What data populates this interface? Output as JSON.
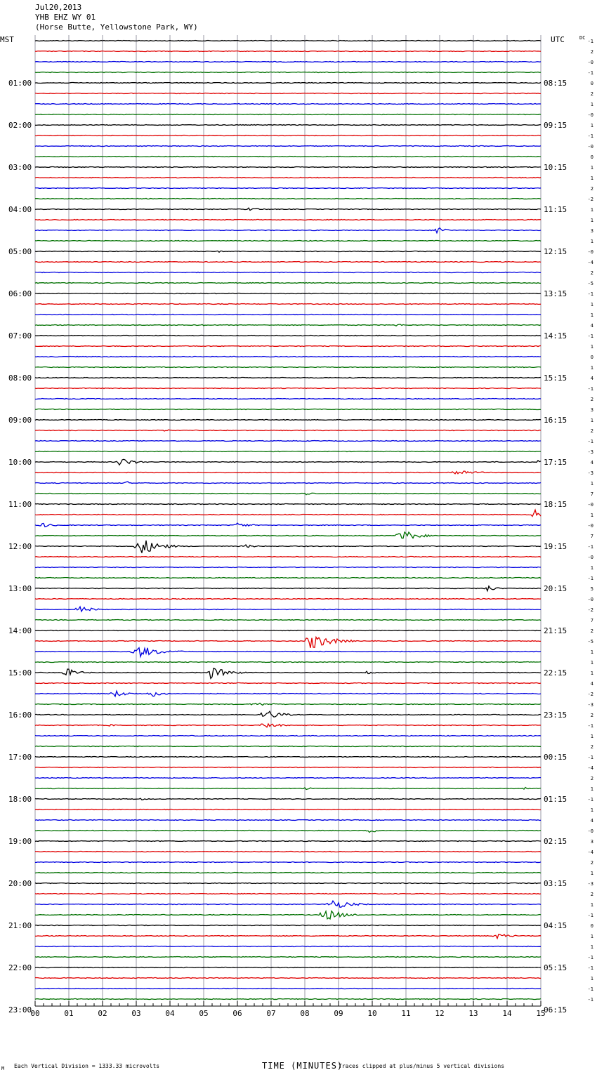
{
  "header": {
    "date": "Jul20,2013",
    "station": "YHB EHZ WY 01",
    "location": "(Horse Butte, Yellowstone Park, WY)"
  },
  "left_zone": "MST",
  "right_zone": "UTC",
  "dc_label": "DC",
  "footer": {
    "scale": "Each Vertical Division = 1333.33 microvolts",
    "xlabel": "TIME (MINUTES)",
    "clip_note": "Traces clipped at plus/minus 5 vertical divisions",
    "corner": "M"
  },
  "colors": {
    "trace_cycle": [
      "#000000",
      "#e00000",
      "#0000e0",
      "#007000"
    ],
    "grid": "#9a9aa6"
  },
  "chart_data": {
    "type": "helicorder",
    "x_ticks": [
      "00",
      "01",
      "02",
      "03",
      "04",
      "05",
      "06",
      "07",
      "08",
      "09",
      "10",
      "11",
      "12",
      "13",
      "14",
      "15"
    ],
    "xlim": [
      0,
      15
    ],
    "lines_per_hour": 4,
    "left_labels": [
      "01:00",
      "02:00",
      "03:00",
      "04:00",
      "05:00",
      "06:00",
      "07:00",
      "08:00",
      "09:00",
      "10:00",
      "11:00",
      "12:00",
      "13:00",
      "14:00",
      "15:00",
      "16:00",
      "17:00",
      "18:00",
      "19:00",
      "20:00",
      "21:00",
      "22:00",
      "23:00"
    ],
    "right_labels": [
      "08:15",
      "09:15",
      "10:15",
      "11:15",
      "12:15",
      "13:15",
      "14:15",
      "15:15",
      "16:15",
      "17:15",
      "18:15",
      "19:15",
      "20:15",
      "21:15",
      "22:15",
      "23:15",
      "00:15",
      "01:15",
      "02:15",
      "03:15",
      "04:15",
      "05:15",
      "06:15"
    ],
    "dc_offsets": [
      "-1",
      "2",
      "-0",
      "-1",
      "0",
      "2",
      "1",
      "-0",
      "1",
      "-1",
      "-0",
      "0",
      "1",
      "1",
      "2",
      "-2",
      "1",
      "1",
      "3",
      "1",
      "-0",
      "-4",
      "2",
      "-5",
      "-1",
      "1",
      "1",
      "4",
      "-1",
      "1",
      "0",
      "1",
      "4",
      "-1",
      "2",
      "3",
      "1",
      "2",
      "-1",
      "-3",
      "4",
      "-3",
      "1",
      "7",
      "-0",
      "1",
      "-0",
      "7",
      "-1",
      "-0",
      "1",
      "-1",
      "5",
      "-0",
      "-2",
      "7",
      "2",
      "-5",
      "1",
      "1",
      "1",
      "4",
      "-2",
      "-3",
      "2",
      "-1",
      "1",
      "2",
      "-1",
      "-4",
      "2",
      "1",
      "-1",
      "1",
      "4",
      "-0",
      "3",
      "-4",
      "2",
      "1",
      "-3",
      "2",
      "1",
      "-1",
      "0",
      "1",
      "1",
      "-1",
      "-1",
      "1",
      "-1",
      "-1"
    ],
    "events": [
      {
        "line": 16,
        "minute": 6.3,
        "amp": 2.5,
        "dur": 0.9
      },
      {
        "line": 18,
        "minute": 11.9,
        "amp": 9,
        "dur": 0.4
      },
      {
        "line": 20,
        "minute": 5.4,
        "amp": 2.5,
        "dur": 0.2
      },
      {
        "line": 27,
        "minute": 4.9,
        "amp": 1.5,
        "dur": 0.5
      },
      {
        "line": 27,
        "minute": 10.7,
        "amp": 2,
        "dur": 0.6
      },
      {
        "line": 37,
        "minute": 3.8,
        "amp": 1.5,
        "dur": 0.7
      },
      {
        "line": 40,
        "minute": 2.5,
        "amp": 6,
        "dur": 0.9
      },
      {
        "line": 40,
        "minute": 14.9,
        "amp": 4,
        "dur": 0.3
      },
      {
        "line": 41,
        "minute": 12.4,
        "amp": 5,
        "dur": 1.1
      },
      {
        "line": 42,
        "minute": 2.7,
        "amp": 3,
        "dur": 0.3
      },
      {
        "line": 43,
        "minute": 8.0,
        "amp": 2,
        "dur": 0.6
      },
      {
        "line": 45,
        "minute": 14.8,
        "amp": 9,
        "dur": 0.5
      },
      {
        "line": 46,
        "minute": 6.0,
        "amp": 4,
        "dur": 0.7
      },
      {
        "line": 46,
        "minute": 0.2,
        "amp": 4,
        "dur": 0.6
      },
      {
        "line": 47,
        "minute": 10.8,
        "amp": 11,
        "dur": 0.9
      },
      {
        "line": 48,
        "minute": 3.1,
        "amp": 14,
        "dur": 1.0
      },
      {
        "line": 48,
        "minute": 6.2,
        "amp": 2.5,
        "dur": 0.8
      },
      {
        "line": 52,
        "minute": 13.4,
        "amp": 5,
        "dur": 0.5
      },
      {
        "line": 54,
        "minute": 1.3,
        "amp": 6,
        "dur": 0.7
      },
      {
        "line": 57,
        "minute": 8.1,
        "amp": 14,
        "dur": 1.2
      },
      {
        "line": 58,
        "minute": 3.0,
        "amp": 10,
        "dur": 1.2
      },
      {
        "line": 60,
        "minute": 0.9,
        "amp": 7,
        "dur": 0.7
      },
      {
        "line": 60,
        "minute": 5.2,
        "amp": 9,
        "dur": 1.0
      },
      {
        "line": 60,
        "minute": 9.8,
        "amp": 3,
        "dur": 0.6
      },
      {
        "line": 62,
        "minute": 2.3,
        "amp": 6,
        "dur": 0.8
      },
      {
        "line": 62,
        "minute": 3.4,
        "amp": 6,
        "dur": 0.6
      },
      {
        "line": 63,
        "minute": 6.5,
        "amp": 3,
        "dur": 1.0
      },
      {
        "line": 64,
        "minute": 6.8,
        "amp": 9,
        "dur": 0.8
      },
      {
        "line": 65,
        "minute": 6.8,
        "amp": 6,
        "dur": 0.7
      },
      {
        "line": 65,
        "minute": 2.2,
        "amp": 2,
        "dur": 0.4
      },
      {
        "line": 71,
        "minute": 8.0,
        "amp": 2,
        "dur": 0.6
      },
      {
        "line": 71,
        "minute": 14.5,
        "amp": 2,
        "dur": 0.3
      },
      {
        "line": 72,
        "minute": 3.1,
        "amp": 2,
        "dur": 0.4
      },
      {
        "line": 75,
        "minute": 9.9,
        "amp": 3,
        "dur": 0.7
      },
      {
        "line": 79,
        "minute": 13.8,
        "amp": 1.5,
        "dur": 0.4
      },
      {
        "line": 82,
        "minute": 8.8,
        "amp": 8,
        "dur": 1.0
      },
      {
        "line": 83,
        "minute": 8.6,
        "amp": 9,
        "dur": 1.0
      },
      {
        "line": 85,
        "minute": 13.7,
        "amp": 4,
        "dur": 0.8
      }
    ]
  }
}
